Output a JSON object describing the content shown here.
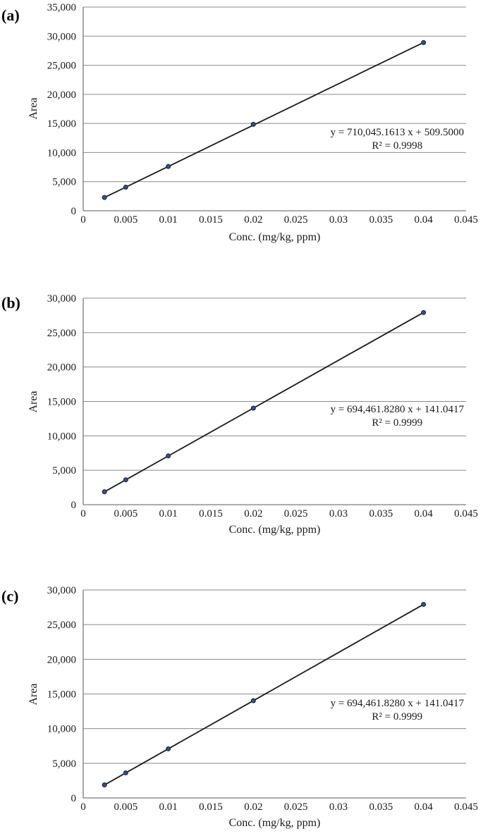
{
  "figure": {
    "background": "#ffffff",
    "grid_color": "#8a8a8a",
    "axis_color": "#7a7a7a",
    "text_color": "#1a1a1a"
  },
  "chart_data": [
    {
      "type": "scatter",
      "panel_label": "(a)",
      "xlabel": "Conc. (mg/kg, ppm)",
      "ylabel": "Area",
      "x": [
        0.0025,
        0.005,
        0.01,
        0.02,
        0.04
      ],
      "y": [
        2285,
        4060,
        7610,
        14850,
        28900
      ],
      "trendline": {
        "slope": 710045.1613,
        "intercept": 509.5
      },
      "equation_label": "y = 710,045.1613 x + 509.5000",
      "r2_label": "R² = 0.9998",
      "xlim": [
        0,
        0.045
      ],
      "x_tick_step": 0.005,
      "x_tick_labels": [
        "0",
        "0.005",
        "0.01",
        "0.015",
        "0.02",
        "0.025",
        "0.03",
        "0.035",
        "0.04",
        "0.045"
      ],
      "ylim": [
        0,
        35000
      ],
      "y_tick_step": 5000,
      "y_tick_labels": [
        "0",
        "5,000",
        "10,000",
        "15,000",
        "20,000",
        "25,000",
        "30,000",
        "35,000"
      ],
      "grid": true,
      "legend": false,
      "marker_color": "#2f5496",
      "marker_edge_color": "#1a2744",
      "line_color": "#1a1a1a"
    },
    {
      "type": "scatter",
      "panel_label": "(b)",
      "xlabel": "Conc. (mg/kg, ppm)",
      "ylabel": "Area",
      "x": [
        0.0025,
        0.005,
        0.01,
        0.02,
        0.04
      ],
      "y": [
        1880,
        3615,
        7085,
        14030,
        27920
      ],
      "trendline": {
        "slope": 694461.828,
        "intercept": 141.0417
      },
      "equation_label": "y = 694,461.8280 x + 141.0417",
      "r2_label": "R² = 0.9999",
      "xlim": [
        0,
        0.045
      ],
      "x_tick_step": 0.005,
      "x_tick_labels": [
        "0",
        "0.005",
        "0.01",
        "0.015",
        "0.02",
        "0.025",
        "0.03",
        "0.035",
        "0.04",
        "0.045"
      ],
      "ylim": [
        0,
        30000
      ],
      "y_tick_step": 5000,
      "y_tick_labels": [
        "0",
        "5,000",
        "10,000",
        "15,000",
        "20,000",
        "25,000",
        "30,000"
      ],
      "grid": true,
      "legend": false,
      "marker_color": "#2f5496",
      "marker_edge_color": "#1a2744",
      "line_color": "#1a1a1a"
    },
    {
      "type": "scatter",
      "panel_label": "(c)",
      "xlabel": "Conc. (mg/kg, ppm)",
      "ylabel": "Area",
      "x": [
        0.0025,
        0.005,
        0.01,
        0.02,
        0.04
      ],
      "y": [
        1880,
        3615,
        7085,
        14030,
        27920
      ],
      "trendline": {
        "slope": 694461.828,
        "intercept": 141.0417
      },
      "equation_label": "y = 694,461.8280 x + 141.0417",
      "r2_label": "R² = 0.9999",
      "xlim": [
        0,
        0.045
      ],
      "x_tick_step": 0.005,
      "x_tick_labels": [
        "0",
        "0.005",
        "0.01",
        "0.015",
        "0.02",
        "0.025",
        "0.03",
        "0.035",
        "0.04",
        "0.045"
      ],
      "ylim": [
        0,
        30000
      ],
      "y_tick_step": 5000,
      "y_tick_labels": [
        "0",
        "5,000",
        "10,000",
        "15,000",
        "20,000",
        "25,000",
        "30,000"
      ],
      "grid": true,
      "legend": false,
      "marker_color": "#2f5496",
      "marker_edge_color": "#1a2744",
      "line_color": "#1a1a1a"
    }
  ]
}
